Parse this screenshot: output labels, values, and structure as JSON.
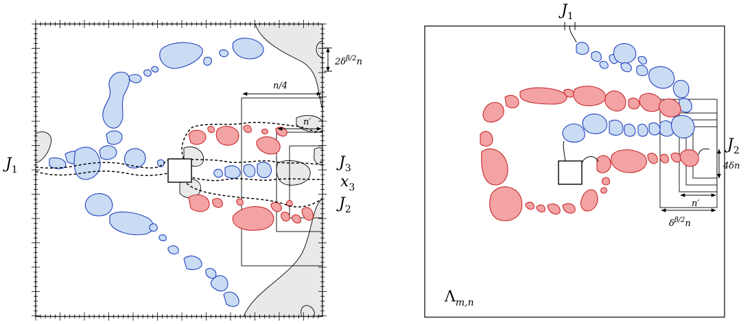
{
  "left_panel": {
    "labels": {
      "j1": "J",
      "j1_sub": "1",
      "j3": "J",
      "j3_sub": "3",
      "x3": "x",
      "x3_sub": "3",
      "j2": "J",
      "j2_sub": "2",
      "n_quarter": "n/4",
      "n_prime": "n′",
      "gap": "2δ",
      "gap_exp": "β/2",
      "gap_n": "n"
    }
  },
  "right_panel": {
    "labels": {
      "j1": "J",
      "j1_sub": "1",
      "j2": "J",
      "j2_sub": "2",
      "four_delta": "4δn",
      "n_prime": "n′",
      "delta": "δ",
      "delta_exp": "β/2",
      "delta_n": "n",
      "lambda": "Λ",
      "lambda_sub": "m,n"
    }
  },
  "colors": {
    "blue_fill": "#c9dcf3",
    "blue_stroke": "#1f3fbf",
    "red_fill": "#f3a3a3",
    "red_stroke": "#c8262a",
    "grey_fill": "#e9e9e9"
  }
}
